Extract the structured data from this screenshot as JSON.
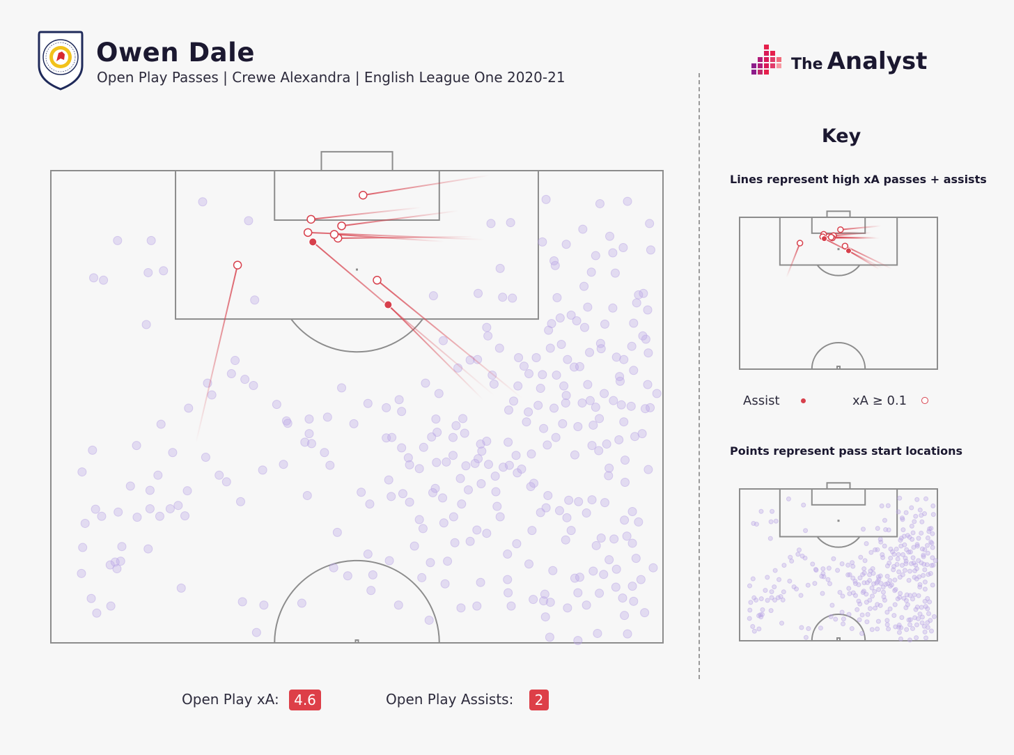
{
  "header": {
    "player_name": "Owen Dale",
    "subtitle": "Open Play Passes | Crewe Alexandra | English League One 2020-21",
    "club_badge_text": "CREWE ALEXANDRA FOOTBALL CLUB",
    "brand": {
      "the": "The",
      "name": "Analyst",
      "icon": "bar-mosaic-logo-icon"
    }
  },
  "key": {
    "title": "Key",
    "lines_caption": "Lines represent high xA passes + assists",
    "points_caption": "Points represent pass start locations",
    "assist_label": "Assist",
    "xa_label": "xA ≥ 0.1"
  },
  "stats": {
    "xa_label": "Open Play xA:",
    "xa_value": "4.6",
    "assists_label": "Open Play Assists:",
    "assists_value": "2"
  },
  "colors": {
    "assist": "#d7404c",
    "point": "#b9a6e6",
    "pitch_line": "#8c8c8c",
    "background": "#f7f7f7"
  },
  "chart_data": {
    "type": "scatter",
    "description_units": "pitch coordinates: x 0-100 across the pitch width, y 0-100 from attacking goal line to halfway line",
    "highlighted_passes": [
      {
        "type": "xA>=0.1",
        "start": [
          23.7,
          57.7
        ],
        "end": [
          30.5,
          20.0
        ]
      },
      {
        "type": "xA>=0.1",
        "start": [
          71.6,
          1.0
        ],
        "end": [
          51.0,
          5.2
        ]
      },
      {
        "type": "xA>=0.1",
        "start": [
          60.5,
          7.8
        ],
        "end": [
          42.5,
          10.3
        ]
      },
      {
        "type": "xA>=0.1",
        "start": [
          70.8,
          14.6
        ],
        "end": [
          42.0,
          13.1
        ]
      },
      {
        "type": "xA>=0.1",
        "start": [
          66.6,
          8.5
        ],
        "end": [
          47.5,
          11.7
        ]
      },
      {
        "type": "xA>=0.1",
        "start": [
          69.1,
          14.0
        ],
        "end": [
          46.9,
          14.3
        ]
      },
      {
        "type": "xA>=0.1",
        "start": [
          64.2,
          15.0
        ],
        "end": [
          46.3,
          13.5
        ]
      },
      {
        "type": "xA>=0.1",
        "start": [
          77.0,
          48.2
        ],
        "end": [
          53.3,
          23.2
        ]
      },
      {
        "type": "assist",
        "start": [
          72.5,
          47.7
        ],
        "end": [
          42.8,
          15.1
        ]
      },
      {
        "type": "assist",
        "start": [
          70.6,
          48.5
        ],
        "end": [
          55.1,
          28.4
        ]
      }
    ],
    "pass_start_points": [
      [
        16.4,
        14.8
      ],
      [
        10.9,
        14.8
      ],
      [
        32.3,
        10.6
      ],
      [
        7.0,
        22.7
      ],
      [
        8.6,
        23.2
      ],
      [
        15.9,
        21.6
      ],
      [
        18.4,
        21.2
      ],
      [
        15.6,
        32.6
      ],
      [
        33.3,
        27.4
      ],
      [
        24.8,
        6.6
      ],
      [
        71.9,
        11.2
      ],
      [
        75.1,
        11.0
      ],
      [
        73.4,
        20.7
      ],
      [
        73.8,
        26.8
      ],
      [
        75.4,
        27.0
      ],
      [
        69.8,
        26.0
      ],
      [
        62.5,
        26.5
      ],
      [
        71.2,
        33.2
      ],
      [
        82.4,
        20.1
      ],
      [
        85.0,
        30.6
      ],
      [
        87.2,
        33.2
      ],
      [
        89.8,
        36.6
      ],
      [
        85.5,
        41.6
      ],
      [
        80.3,
        43.2
      ],
      [
        84.4,
        40.0
      ],
      [
        83.8,
        45.6
      ],
      [
        87.7,
        45.3
      ],
      [
        89.9,
        37.7
      ],
      [
        93.6,
        40.0
      ],
      [
        97.6,
        38.6
      ],
      [
        86.4,
        41.5
      ],
      [
        80.3,
        15.1
      ],
      [
        80.9,
        6.1
      ],
      [
        89.7,
        7.0
      ],
      [
        94.2,
        6.5
      ],
      [
        97.8,
        11.2
      ],
      [
        91.3,
        13.9
      ],
      [
        86.9,
        12.4
      ],
      [
        84.2,
        15.6
      ],
      [
        82.2,
        19.1
      ],
      [
        88.3,
        21.5
      ],
      [
        91.8,
        17.4
      ],
      [
        92.2,
        21.7
      ],
      [
        87.7,
        28.9
      ],
      [
        96.0,
        26.3
      ],
      [
        95.7,
        28.0
      ],
      [
        91.8,
        29.1
      ],
      [
        97.2,
        35.7
      ],
      [
        92.9,
        43.6
      ],
      [
        93.6,
        53.2
      ],
      [
        88.6,
        53.9
      ],
      [
        92.8,
        57.0
      ],
      [
        95.4,
        56.3
      ],
      [
        97.1,
        50.4
      ],
      [
        93.2,
        49.6
      ],
      [
        88.1,
        48.7
      ],
      [
        84.1,
        49.2
      ],
      [
        82.2,
        50.3
      ],
      [
        79.6,
        49.7
      ],
      [
        78.0,
        51.1
      ],
      [
        83.6,
        53.6
      ],
      [
        86.1,
        54.2
      ],
      [
        89.6,
        52.5
      ],
      [
        90.8,
        57.9
      ],
      [
        89.5,
        59.3
      ],
      [
        91.2,
        63.0
      ],
      [
        97.6,
        63.3
      ],
      [
        93.8,
        61.3
      ],
      [
        93.8,
        66.0
      ],
      [
        95.0,
        72.2
      ],
      [
        88.4,
        69.7
      ],
      [
        84.6,
        69.8
      ],
      [
        81.2,
        68.8
      ],
      [
        78.4,
        66.9
      ],
      [
        76.9,
        63.2
      ],
      [
        74.9,
        62.4
      ],
      [
        71.2,
        57.3
      ],
      [
        67.3,
        52.5
      ],
      [
        62.9,
        52.6
      ],
      [
        65.7,
        56.5
      ],
      [
        70.2,
        57.9
      ],
      [
        70.4,
        59.4
      ],
      [
        69.3,
        62.0
      ],
      [
        64.6,
        61.7
      ],
      [
        66.9,
        65.2
      ],
      [
        68.2,
        67.6
      ],
      [
        72.6,
        64.7
      ],
      [
        76.2,
        64.0
      ],
      [
        78.9,
        66.2
      ],
      [
        80.9,
        71.4
      ],
      [
        83.1,
        72.0
      ],
      [
        86.2,
        70.1
      ],
      [
        87.5,
        72.5
      ],
      [
        85.0,
        76.2
      ],
      [
        89.9,
        77.8
      ],
      [
        95.0,
        78.9
      ],
      [
        96.0,
        74.4
      ],
      [
        95.6,
        82.1
      ],
      [
        91.2,
        82.4
      ],
      [
        88.6,
        84.8
      ],
      [
        85.6,
        86.3
      ],
      [
        82.0,
        84.7
      ],
      [
        78.1,
        83.3
      ],
      [
        74.6,
        81.2
      ],
      [
        74.6,
        86.6
      ],
      [
        80.5,
        91.1
      ],
      [
        87.5,
        92.0
      ],
      [
        93.7,
        94.2
      ],
      [
        95.2,
        91.2
      ],
      [
        97.0,
        93.6
      ],
      [
        94.2,
        98.1
      ],
      [
        89.3,
        98.0
      ],
      [
        81.5,
        98.8
      ],
      [
        86.1,
        99.5
      ],
      [
        80.8,
        94.5
      ],
      [
        75.2,
        92.2
      ],
      [
        69.6,
        92.2
      ],
      [
        67.0,
        92.6
      ],
      [
        61.8,
        95.2
      ],
      [
        56.8,
        92.0
      ],
      [
        52.6,
        85.6
      ],
      [
        52.3,
        88.9
      ],
      [
        48.5,
        85.8
      ],
      [
        41.0,
        91.6
      ],
      [
        34.8,
        92.0
      ],
      [
        31.3,
        91.3
      ],
      [
        33.6,
        97.8
      ],
      [
        51.8,
        81.2
      ],
      [
        46.2,
        84.1
      ],
      [
        46.8,
        76.6
      ],
      [
        55.3,
        82.6
      ],
      [
        59.4,
        79.5
      ],
      [
        60.8,
        75.8
      ],
      [
        60.2,
        73.9
      ],
      [
        58.6,
        70.2
      ],
      [
        57.5,
        68.4
      ],
      [
        62.8,
        67.3
      ],
      [
        64.0,
        69.3
      ],
      [
        67.1,
        70.6
      ],
      [
        72.9,
        71.1
      ],
      [
        73.4,
        73.3
      ],
      [
        69.6,
        76.1
      ],
      [
        68.5,
        78.5
      ],
      [
        66.0,
        78.8
      ],
      [
        64.8,
        82.7
      ],
      [
        62.0,
        83.0
      ],
      [
        60.6,
        86.2
      ],
      [
        64.4,
        87.5
      ],
      [
        70.2,
        87.2
      ],
      [
        74.7,
        89.4
      ],
      [
        78.8,
        90.8
      ],
      [
        80.7,
        89.7
      ],
      [
        81.6,
        91.4
      ],
      [
        84.4,
        92.6
      ],
      [
        86.1,
        89.4
      ],
      [
        89.6,
        89.5
      ],
      [
        92.3,
        88.2
      ],
      [
        96.4,
        86.6
      ],
      [
        98.4,
        84.1
      ],
      [
        92.4,
        84.4
      ],
      [
        57.3,
        58.7
      ],
      [
        58.4,
        60.8
      ],
      [
        67.6,
        55.6
      ],
      [
        74.7,
        57.5
      ],
      [
        77.7,
        53.2
      ],
      [
        75.6,
        48.8
      ],
      [
        72.1,
        43.3
      ],
      [
        68.5,
        40.1
      ],
      [
        64.1,
        36.0
      ],
      [
        66.5,
        41.8
      ],
      [
        63.4,
        47.2
      ],
      [
        61.2,
        45.0
      ],
      [
        56.9,
        48.5
      ],
      [
        54.8,
        50.2
      ],
      [
        51.8,
        49.3
      ],
      [
        47.5,
        46.0
      ],
      [
        45.2,
        52.2
      ],
      [
        41.5,
        57.5
      ],
      [
        38.0,
        62.2
      ],
      [
        34.6,
        63.4
      ],
      [
        27.5,
        64.5
      ],
      [
        28.7,
        65.9
      ],
      [
        22.3,
        67.8
      ],
      [
        21.9,
        73.1
      ],
      [
        20.8,
        70.9
      ],
      [
        19.5,
        71.6
      ],
      [
        21.3,
        88.4
      ],
      [
        17.8,
        73.2
      ],
      [
        15.9,
        80.1
      ],
      [
        11.4,
        82.7
      ],
      [
        9.7,
        83.5
      ],
      [
        10.5,
        82.9
      ],
      [
        11.0,
        72.3
      ],
      [
        7.3,
        71.7
      ],
      [
        8.3,
        73.2
      ],
      [
        5.6,
        74.7
      ],
      [
        5.2,
        79.8
      ],
      [
        5.0,
        85.3
      ],
      [
        6.6,
        90.6
      ],
      [
        7.5,
        93.7
      ],
      [
        9.8,
        92.2
      ],
      [
        10.8,
        84.3
      ],
      [
        11.6,
        79.6
      ],
      [
        14.1,
        73.4
      ],
      [
        16.2,
        71.6
      ],
      [
        14.0,
        58.2
      ],
      [
        13.0,
        66.8
      ],
      [
        16.2,
        67.7
      ],
      [
        18.0,
        53.7
      ],
      [
        22.5,
        50.3
      ],
      [
        25.6,
        45.0
      ],
      [
        30.1,
        40.2
      ],
      [
        31.7,
        44.2
      ],
      [
        33.1,
        45.5
      ],
      [
        38.7,
        53.5
      ],
      [
        42.2,
        52.6
      ],
      [
        42.2,
        55.7
      ],
      [
        49.5,
        53.6
      ],
      [
        54.8,
        56.6
      ],
      [
        55.7,
        56.5
      ],
      [
        57.3,
        51.0
      ],
      [
        62.2,
        56.4
      ],
      [
        63.1,
        55.4
      ],
      [
        60.9,
        58.6
      ],
      [
        58.6,
        62.3
      ],
      [
        63.0,
        61.8
      ],
      [
        65.7,
        60.3
      ],
      [
        69.8,
        61.0
      ],
      [
        71.5,
        62.2
      ],
      [
        73.9,
        62.8
      ],
      [
        67.8,
        62.5
      ],
      [
        60.2,
        63.1
      ],
      [
        55.2,
        65.5
      ],
      [
        55.6,
        69.0
      ],
      [
        52.1,
        70.6
      ],
      [
        50.7,
        68.1
      ],
      [
        45.6,
        62.4
      ],
      [
        44.7,
        59.7
      ],
      [
        42.6,
        57.8
      ],
      [
        38.5,
        53.0
      ],
      [
        36.9,
        49.5
      ],
      [
        29.5,
        43.0
      ],
      [
        25.3,
        60.7
      ],
      [
        6.8,
        59.2
      ],
      [
        5.1,
        63.8
      ],
      [
        17.5,
        64.5
      ],
      [
        19.9,
        59.7
      ],
      [
        26.3,
        47.5
      ],
      [
        31.0,
        70.1
      ],
      [
        41.9,
        68.8
      ],
      [
        62.4,
        68.2
      ],
      [
        82.5,
        56.5
      ],
      [
        78.5,
        60.0
      ],
      [
        85.6,
        60.2
      ],
      [
        90.5,
        70.3
      ],
      [
        93.7,
        74.0
      ],
      [
        91.1,
        64.6
      ],
      [
        88.4,
        58.2
      ],
      [
        96.6,
        55.7
      ],
      [
        97.9,
        50.2
      ],
      [
        93.0,
        44.6
      ],
      [
        90.4,
        47.2
      ],
      [
        88.0,
        38.5
      ],
      [
        83.4,
        36.8
      ],
      [
        81.3,
        33.8
      ],
      [
        82.7,
        26.9
      ],
      [
        87.1,
        24.5
      ],
      [
        89.0,
        18.0
      ],
      [
        93.5,
        16.3
      ],
      [
        98.0,
        16.8
      ],
      [
        96.8,
        26.0
      ],
      [
        97.5,
        29.5
      ],
      [
        95.2,
        32.3
      ],
      [
        90.5,
        32.5
      ],
      [
        85.9,
        31.8
      ],
      [
        83.2,
        31.2
      ],
      [
        81.8,
        32.4
      ],
      [
        81.6,
        37.6
      ],
      [
        79.3,
        39.6
      ],
      [
        76.4,
        39.6
      ],
      [
        73.3,
        37.6
      ],
      [
        71.4,
        35.0
      ],
      [
        69.7,
        40.0
      ],
      [
        72.4,
        45.2
      ],
      [
        76.3,
        45.6
      ],
      [
        80.0,
        46.1
      ],
      [
        82.6,
        43.3
      ],
      [
        78.1,
        43.0
      ],
      [
        77.3,
        41.4
      ],
      [
        86.8,
        49.2
      ],
      [
        89.0,
        50.1
      ],
      [
        94.8,
        49.9
      ],
      [
        97.5,
        45.3
      ],
      [
        99.0,
        47.2
      ],
      [
        95.2,
        42.3
      ],
      [
        94.9,
        37.2
      ],
      [
        96.7,
        35.0
      ],
      [
        92.4,
        39.5
      ],
      [
        91.9,
        48.7
      ],
      [
        84.2,
        47.6
      ],
      [
        66.2,
        54.0
      ],
      [
        74.8,
        50.7
      ],
      [
        80.5,
        54.6
      ],
      [
        81.1,
        58.1
      ],
      [
        76.0,
        60.3
      ],
      [
        72.7,
        68.0
      ],
      [
        70.3,
        66.3
      ],
      [
        65.8,
        73.3
      ],
      [
        64.2,
        74.6
      ],
      [
        71.2,
        76.8
      ],
      [
        76.1,
        79.0
      ],
      [
        78.6,
        76.2
      ],
      [
        80.0,
        72.4
      ],
      [
        84.3,
        73.5
      ],
      [
        84.1,
        78.2
      ],
      [
        89.1,
        79.4
      ],
      [
        92.0,
        78.0
      ],
      [
        94.1,
        77.4
      ],
      [
        90.3,
        85.5
      ],
      [
        86.4,
        86.1
      ],
      [
        95.0,
        88.0
      ],
      [
        93.4,
        90.5
      ]
    ]
  }
}
